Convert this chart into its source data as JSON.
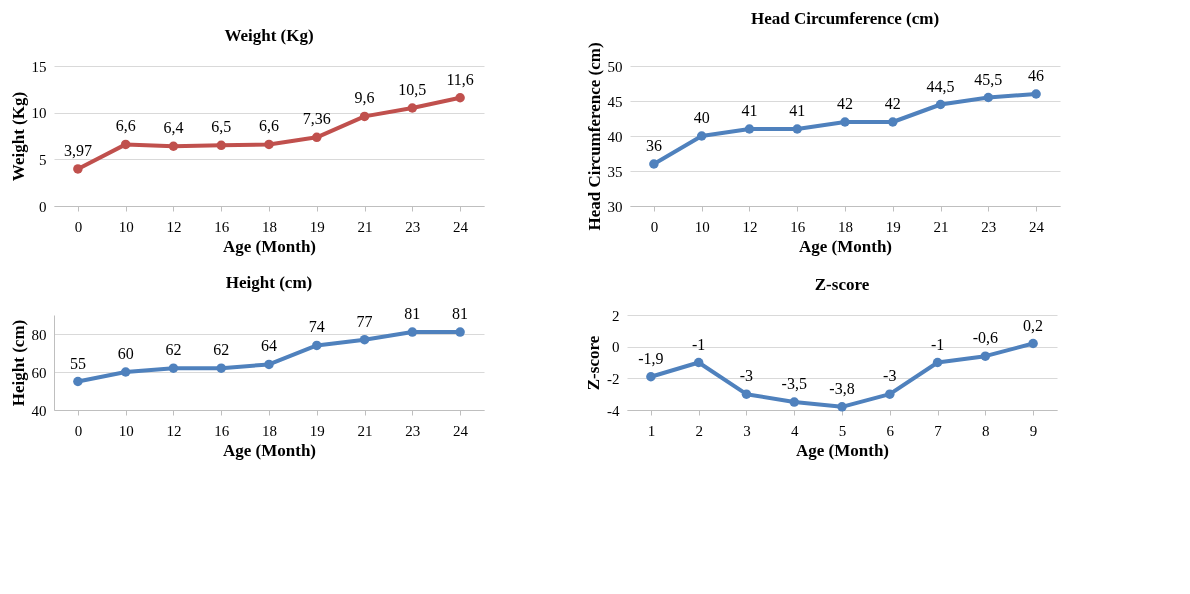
{
  "chart_data": [
    {
      "type": "line",
      "title": "Weight (Kg)",
      "xlabel": "Age (Month)",
      "ylabel": "Weight (Kg)",
      "categories": [
        "0",
        "10",
        "12",
        "16",
        "18",
        "19",
        "21",
        "23",
        "24"
      ],
      "ylim": [
        0,
        15
      ],
      "yticks": [
        0,
        5,
        10,
        15
      ],
      "grid": "y",
      "marker": "circle",
      "series": [
        {
          "color": "#c0504d",
          "values": [
            3.97,
            6.6,
            6.4,
            6.5,
            6.6,
            7.36,
            9.6,
            10.5,
            11.6
          ],
          "value_labels": [
            "3,97",
            "6,6",
            "6,4",
            "6,5",
            "6,6",
            "7,36",
            "9,6",
            "10,5",
            "11,6"
          ]
        }
      ]
    },
    {
      "type": "line",
      "title": "Head Circumference (cm)",
      "xlabel": "Age (Month)",
      "ylabel": "Head Circumference (cm)",
      "categories": [
        "0",
        "10",
        "12",
        "16",
        "18",
        "19",
        "21",
        "23",
        "24"
      ],
      "ylim": [
        30,
        50
      ],
      "yticks": [
        30,
        35,
        40,
        45,
        50
      ],
      "grid": "y",
      "marker": "circle",
      "series": [
        {
          "color": "#4f81bd",
          "values": [
            36,
            40,
            41,
            41,
            42,
            42,
            44.5,
            45.5,
            46
          ],
          "value_labels": [
            "36",
            "40",
            "41",
            "41",
            "42",
            "42",
            "44,5",
            "45,5",
            "46"
          ]
        }
      ]
    },
    {
      "type": "line",
      "title": "Height (cm)",
      "xlabel": "Age (Month)",
      "ylabel": "Height (cm)",
      "categories": [
        "0",
        "10",
        "12",
        "16",
        "18",
        "19",
        "21",
        "23",
        "24"
      ],
      "ylim": [
        40,
        90
      ],
      "yticks": [
        40,
        60,
        80
      ],
      "grid": "y",
      "marker": "circle",
      "series": [
        {
          "color": "#4f81bd",
          "values": [
            55,
            60,
            62,
            62,
            64,
            74,
            77,
            81,
            81
          ],
          "value_labels": [
            "55",
            "60",
            "62",
            "62",
            "64",
            "74",
            "77",
            "81",
            "81"
          ]
        }
      ]
    },
    {
      "type": "line",
      "title": "Z-score",
      "xlabel": "Age (Month)",
      "ylabel": "Z-score",
      "categories": [
        "1",
        "2",
        "3",
        "4",
        "5",
        "6",
        "7",
        "8",
        "9"
      ],
      "ylim": [
        -4,
        2
      ],
      "yticks": [
        -4,
        -2,
        0,
        2
      ],
      "grid": "y",
      "marker": "circle",
      "series": [
        {
          "color": "#4f81bd",
          "values": [
            -1.9,
            -1,
            -3,
            -3.5,
            -3.8,
            -3,
            -1,
            -0.6,
            0.2
          ],
          "value_labels": [
            "-1,9",
            "-1",
            "-3",
            "-3,5",
            "-3,8",
            "-3",
            "-1",
            "-0,6",
            "0,2"
          ]
        }
      ]
    }
  ]
}
